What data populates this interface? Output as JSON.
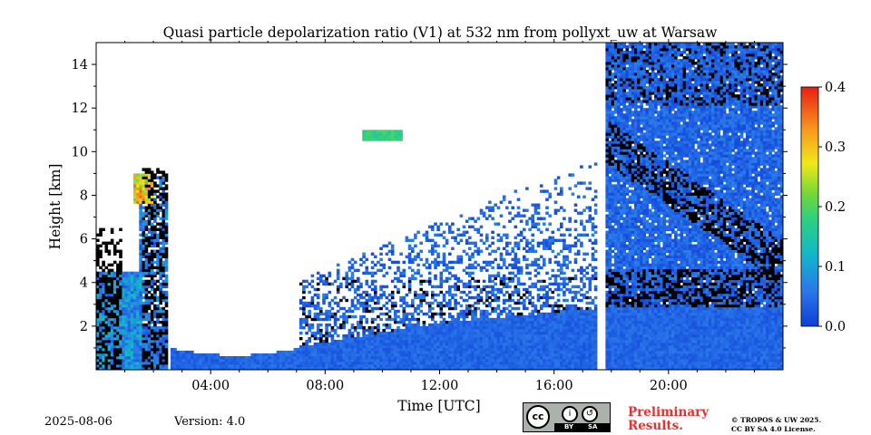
{
  "chart_data": {
    "type": "heatmap",
    "title": "Quasi particle depolarization ratio (V1) at 532 nm from pollyxt_uw at Warsaw",
    "xlabel": "Time [UTC]",
    "ylabel": "Height [km]",
    "xlim_hours": [
      0,
      24
    ],
    "ylim_km": [
      0,
      15
    ],
    "x_ticks": [
      {
        "value": 4,
        "label": "04:00"
      },
      {
        "value": 8,
        "label": "08:00"
      },
      {
        "value": 12,
        "label": "12:00"
      },
      {
        "value": 16,
        "label": "16:00"
      },
      {
        "value": 20,
        "label": "20:00"
      }
    ],
    "y_ticks": [
      {
        "value": 2,
        "label": "2"
      },
      {
        "value": 4,
        "label": "4"
      },
      {
        "value": 6,
        "label": "6"
      },
      {
        "value": 8,
        "label": "8"
      },
      {
        "value": 10,
        "label": "10"
      },
      {
        "value": 12,
        "label": "12"
      },
      {
        "value": 14,
        "label": "14"
      }
    ],
    "colorbar": {
      "range": [
        0.0,
        0.4
      ],
      "ticks": [
        {
          "value": 0.0,
          "label": "0.0"
        },
        {
          "value": 0.1,
          "label": "0.1"
        },
        {
          "value": 0.2,
          "label": "0.2"
        },
        {
          "value": 0.3,
          "label": "0.3"
        },
        {
          "value": 0.4,
          "label": "0.4"
        }
      ],
      "colormap": "jet"
    },
    "colors": {
      "no_data": "#ffffff",
      "cloud_mask": "#000000",
      "background_low": "#1a5bd8"
    },
    "features": {
      "boundary_layer_depol": 0.03,
      "dust_layer_0_2h": {
        "height_km": [
          3,
          9
        ],
        "depol_max": 0.35
      },
      "cirrus_patch_10h": {
        "height_km": [
          10.5,
          10.8
        ],
        "depol": 0.15
      },
      "data_gaps_hours": [
        2.5,
        17.5,
        17.7
      ]
    }
  },
  "footer": {
    "date": "2025-08-06",
    "version": "Version: 4.0",
    "preliminary": [
      "Preliminary",
      "Results."
    ],
    "copyright": [
      "© TROPOS & UW 2025.",
      "CC BY SA 4.0 License."
    ],
    "license_badge": {
      "cc": "cc",
      "by": "BY",
      "sa": "SA"
    }
  }
}
